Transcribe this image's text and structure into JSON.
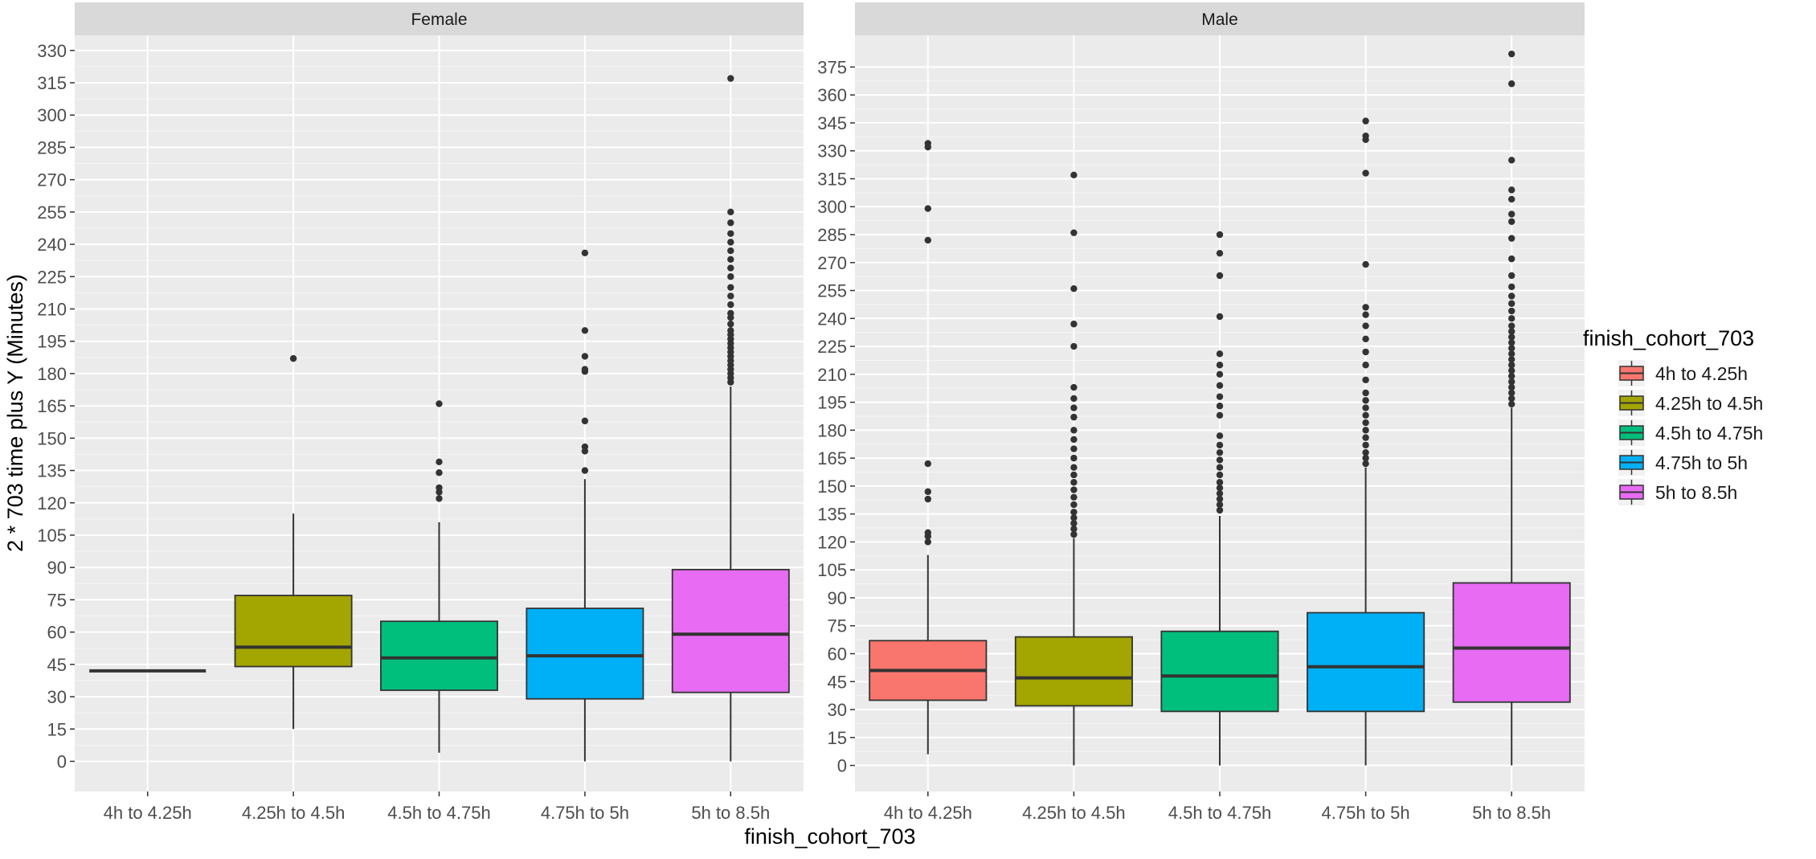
{
  "chart_data": {
    "type": "boxplot",
    "ylabel": "2 * 703 time plus Y (Minutes)",
    "xlabel": "finish_cohort_703",
    "categories": [
      "4h to 4.25h",
      "4.25h to 4.5h",
      "4.5h to 4.75h",
      "4.75h to 5h",
      "5h to 8.5h"
    ],
    "legend": {
      "title": "finish_cohort_703",
      "placement": "right",
      "items": [
        {
          "label": "4h to 4.25h",
          "color": "#F8766D"
        },
        {
          "label": "4.25h to 4.5h",
          "color": "#A3A500"
        },
        {
          "label": "4.5h to 4.75h",
          "color": "#00BF7D"
        },
        {
          "label": "4.75h to 5h",
          "color": "#00B0F6"
        },
        {
          "label": "5h to 8.5h",
          "color": "#E76BF3"
        }
      ]
    },
    "grid": true,
    "panels": [
      {
        "strip": "Female",
        "ylim": [
          -14,
          337
        ],
        "yticks": [
          0,
          15,
          30,
          45,
          60,
          75,
          90,
          105,
          120,
          135,
          150,
          165,
          180,
          195,
          210,
          225,
          240,
          255,
          270,
          285,
          300,
          315,
          330
        ],
        "boxes": [
          {
            "category": "4h to 4.25h",
            "min": 42,
            "q1": 42,
            "median": 42,
            "q3": 42,
            "max": 42,
            "outliers": []
          },
          {
            "category": "4.25h to 4.5h",
            "min": 15,
            "q1": 44,
            "median": 53,
            "q3": 77,
            "max": 115,
            "outliers": [
              187
            ]
          },
          {
            "category": "4.5h to 4.75h",
            "min": 4,
            "q1": 33,
            "median": 48,
            "q3": 65,
            "max": 111,
            "outliers": [
              122,
              125,
              127,
              134,
              139,
              166
            ]
          },
          {
            "category": "4.75h to 5h",
            "min": 0,
            "q1": 29,
            "median": 49,
            "q3": 71,
            "max": 131,
            "outliers": [
              135,
              144,
              146,
              158,
              181,
              182,
              188,
              200,
              236
            ]
          },
          {
            "category": "5h to 8.5h",
            "min": 0,
            "q1": 32,
            "median": 59,
            "q3": 89,
            "max": 174,
            "outliers": [
              176,
              178,
              180,
              182,
              184,
              186,
              188,
              190,
              192,
              194,
              196,
              198,
              200,
              203,
              206,
              208,
              212,
              216,
              220,
              225,
              229,
              233,
              237,
              241,
              245,
              250,
              255,
              317
            ]
          }
        ]
      },
      {
        "strip": "Male",
        "ylim": [
          -14,
          392
        ],
        "yticks": [
          0,
          15,
          30,
          45,
          60,
          75,
          90,
          105,
          120,
          135,
          150,
          165,
          180,
          195,
          210,
          225,
          240,
          255,
          270,
          285,
          300,
          315,
          330,
          345,
          360,
          375
        ],
        "boxes": [
          {
            "category": "4h to 4.25h",
            "min": 6,
            "q1": 35,
            "median": 51,
            "q3": 67,
            "max": 113,
            "outliers": [
              120,
              123,
              125,
              143,
              147,
              162,
              282,
              299,
              332,
              334
            ]
          },
          {
            "category": "4.25h to 4.5h",
            "min": 0,
            "q1": 32,
            "median": 47,
            "q3": 69,
            "max": 122,
            "outliers": [
              124,
              127,
              130,
              133,
              136,
              140,
              144,
              148,
              152,
              156,
              160,
              165,
              170,
              175,
              180,
              187,
              192,
              197,
              203,
              225,
              237,
              256,
              286,
              317
            ]
          },
          {
            "category": "4.5h to 4.75h",
            "min": 0,
            "q1": 29,
            "median": 48,
            "q3": 72,
            "max": 134,
            "outliers": [
              137,
              140,
              143,
              146,
              149,
              152,
              156,
              160,
              164,
              168,
              172,
              177,
              188,
              193,
              198,
              204,
              210,
              215,
              221,
              241,
              263,
              275,
              285
            ]
          },
          {
            "category": "4.75h to 5h",
            "min": 0,
            "q1": 29,
            "median": 53,
            "q3": 82,
            "max": 160,
            "outliers": [
              162,
              165,
              168,
              172,
              176,
              180,
              184,
              188,
              192,
              196,
              200,
              207,
              215,
              222,
              229,
              236,
              242,
              246,
              269,
              318,
              336,
              338,
              346
            ]
          },
          {
            "category": "5h to 8.5h",
            "min": 0,
            "q1": 34,
            "median": 63,
            "q3": 98,
            "max": 192,
            "outliers": [
              194,
              197,
              200,
              203,
              206,
              209,
              212,
              215,
              218,
              221,
              224,
              227,
              230,
              233,
              236,
              240,
              244,
              248,
              252,
              257,
              263,
              272,
              283,
              292,
              296,
              304,
              309,
              325,
              366,
              382
            ]
          }
        ]
      }
    ]
  }
}
